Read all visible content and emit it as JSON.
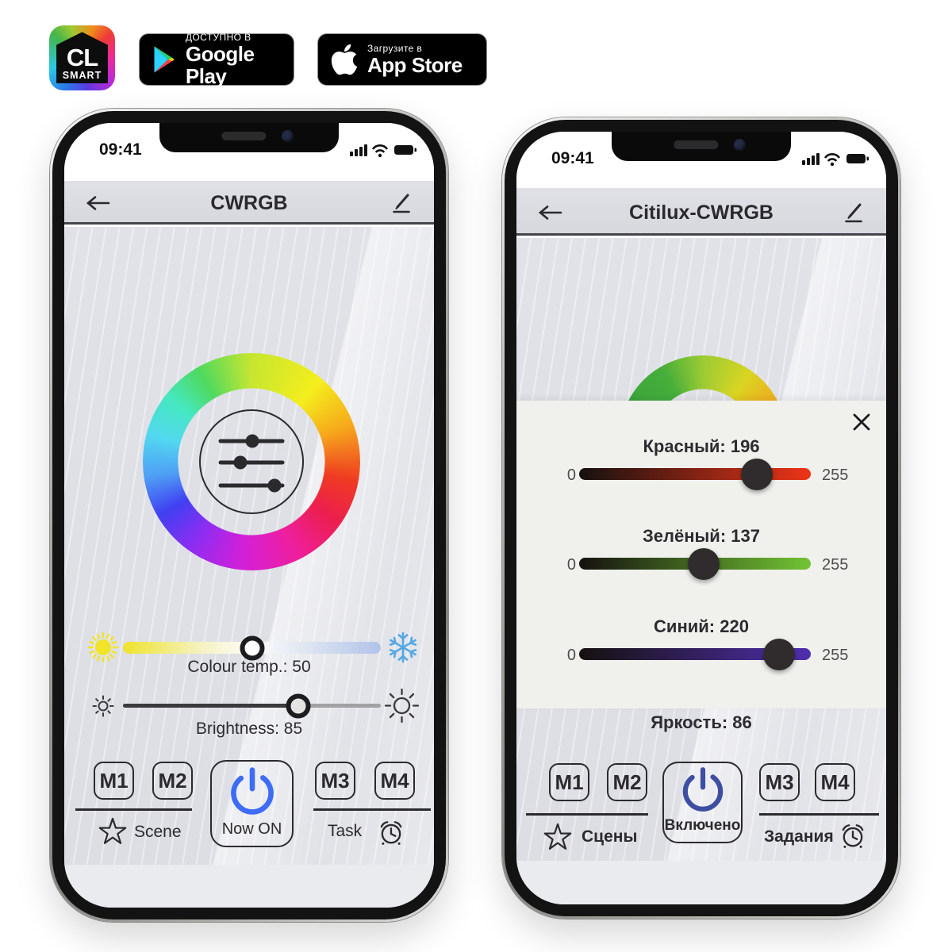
{
  "badges": {
    "cl": {
      "title": "CL",
      "subtitle": "SMART"
    },
    "google_play": {
      "line1": "ДОСТУПНО В",
      "line2": "Google Play"
    },
    "app_store": {
      "line1": "Загрузите в",
      "line2": "App Store"
    }
  },
  "left_phone": {
    "status_time": "09:41",
    "title": "CWRGB",
    "color_temp": {
      "label": "Colour temp.: 50",
      "value": 50,
      "knob_pct": 50
    },
    "brightness": {
      "label": "Brightness: 85",
      "value": 85,
      "knob_pct": 68
    },
    "memory_buttons": [
      "M1",
      "M2",
      "M3",
      "M4"
    ],
    "power_label": "Now ON",
    "scene_label": "Scene",
    "task_label": "Task",
    "accent": "#3e6cf5"
  },
  "right_phone": {
    "status_time": "09:41",
    "title": "Citilux-CWRGB",
    "modal": {
      "sliders": [
        {
          "label": "Красный: 196",
          "min": "0",
          "max": "255",
          "value": 196,
          "max_value": 255,
          "color": "#ee3418"
        },
        {
          "label": "Зелёный: 137",
          "min": "0",
          "max": "255",
          "value": 137,
          "max_value": 255,
          "color": "#72c434"
        },
        {
          "label": "Синий: 220",
          "min": "0",
          "max": "255",
          "value": 220,
          "max_value": 255,
          "color": "#4f2fae"
        }
      ]
    },
    "brightness_label": "Яркость: 86",
    "memory_buttons": [
      "M1",
      "M2",
      "M3",
      "M4"
    ],
    "power_label": "Включено",
    "scene_label": "Сцены",
    "task_label": "Задания",
    "accent": "#3e4fa3"
  }
}
